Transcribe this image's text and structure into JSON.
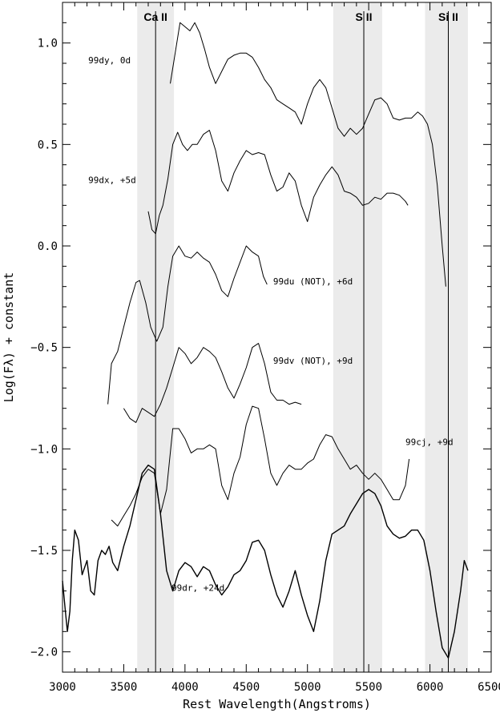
{
  "chart_data": {
    "type": "line",
    "title": "",
    "xlabel": "Rest Wavelength(Angstroms)",
    "ylabel": "Log(Fλ) + constant",
    "xlim": [
      3000,
      6500
    ],
    "ylim": [
      -2.1,
      1.2
    ],
    "x_ticks": [
      3000,
      3500,
      4000,
      4500,
      5000,
      5500,
      6000,
      6500
    ],
    "x_tick_labels": [
      "3000",
      "3500",
      "4000",
      "4500",
      "5000",
      "5500",
      "6000",
      "6500"
    ],
    "y_ticks": [
      1.0,
      0.5,
      0.0,
      -0.5,
      -1.0,
      -1.5,
      -2.0
    ],
    "y_tick_labels": [
      "1.0",
      "0.5",
      "0.0",
      "−0.5",
      "−1.0",
      "−1.5",
      "−2.0"
    ],
    "grid": false,
    "shaded_bands": [
      {
        "x_range": [
          3610,
          3910
        ],
        "color": "#ebebeb"
      },
      {
        "x_range": [
          5210,
          5610
        ],
        "color": "#ebebeb"
      },
      {
        "x_range": [
          5960,
          6310
        ],
        "color": "#ebebeb"
      }
    ],
    "vertical_lines": [
      {
        "x": 3760,
        "label": "Ca II"
      },
      {
        "x": 5460,
        "label": "S II"
      },
      {
        "x": 6150,
        "label": "Si II"
      }
    ],
    "annotations": [
      {
        "text": "99dy, 0d",
        "x": 3210,
        "y": 0.9
      },
      {
        "text": "99dx, +5d",
        "x": 3210,
        "y": 0.31
      },
      {
        "text": "99du (NOT), +6d",
        "x": 4720,
        "y": -0.19
      },
      {
        "text": "99dv (NOT), +9d",
        "x": 4720,
        "y": -0.58
      },
      {
        "text": "99cj, +9d",
        "x": 5800,
        "y": -0.98
      },
      {
        "text": "99dr, +24d",
        "x": 3890,
        "y": -1.7
      }
    ],
    "series": [
      {
        "label_ref": "99dy, 0d",
        "color": "#000000",
        "x": [
          3880,
          3920,
          3960,
          4000,
          4040,
          4080,
          4120,
          4160,
          4200,
          4250,
          4300,
          4350,
          4400,
          4450,
          4500,
          4550,
          4600,
          4650,
          4700,
          4750,
          4800,
          4850,
          4900,
          4950,
          5000,
          5050,
          5100,
          5150,
          5200,
          5250,
          5300,
          5350,
          5400,
          5450,
          5500,
          5550,
          5600,
          5650,
          5700,
          5750,
          5800,
          5850,
          5900,
          5940,
          5980,
          6020,
          6060,
          6100,
          6130
        ],
        "y": [
          0.8,
          0.95,
          1.1,
          1.08,
          1.06,
          1.1,
          1.05,
          0.97,
          0.88,
          0.8,
          0.86,
          0.92,
          0.94,
          0.95,
          0.95,
          0.93,
          0.88,
          0.82,
          0.78,
          0.72,
          0.7,
          0.68,
          0.66,
          0.6,
          0.7,
          0.78,
          0.82,
          0.78,
          0.68,
          0.58,
          0.54,
          0.58,
          0.55,
          0.58,
          0.65,
          0.72,
          0.73,
          0.7,
          0.63,
          0.62,
          0.63,
          0.63,
          0.66,
          0.64,
          0.6,
          0.5,
          0.3,
          0.0,
          -0.2
        ]
      },
      {
        "label_ref": "99dx, +5d",
        "color": "#000000",
        "x": [
          3700,
          3730,
          3760,
          3790,
          3820,
          3860,
          3900,
          3940,
          3980,
          4020,
          4060,
          4100,
          4150,
          4200,
          4250,
          4300,
          4350,
          4400,
          4450,
          4500,
          4550,
          4600,
          4650,
          4700,
          4750,
          4800,
          4850,
          4900,
          4950,
          5000,
          5050,
          5100,
          5150,
          5200,
          5250,
          5300,
          5350,
          5400,
          5450,
          5500,
          5550,
          5600,
          5650,
          5700,
          5750,
          5800,
          5820
        ],
        "y": [
          0.17,
          0.08,
          0.06,
          0.15,
          0.2,
          0.33,
          0.5,
          0.56,
          0.5,
          0.47,
          0.5,
          0.5,
          0.55,
          0.57,
          0.47,
          0.32,
          0.27,
          0.36,
          0.42,
          0.47,
          0.45,
          0.46,
          0.45,
          0.35,
          0.27,
          0.29,
          0.36,
          0.32,
          0.2,
          0.12,
          0.24,
          0.3,
          0.35,
          0.39,
          0.35,
          0.27,
          0.26,
          0.24,
          0.2,
          0.21,
          0.24,
          0.23,
          0.26,
          0.26,
          0.25,
          0.22,
          0.2
        ]
      },
      {
        "label_ref": "99du (NOT), +6d",
        "color": "#000000",
        "x": [
          3370,
          3400,
          3450,
          3500,
          3550,
          3600,
          3630,
          3680,
          3720,
          3770,
          3820,
          3860,
          3900,
          3950,
          4000,
          4050,
          4100,
          4150,
          4200,
          4250,
          4300,
          4350,
          4400,
          4450,
          4500,
          4550,
          4600,
          4640,
          4670
        ],
        "y": [
          -0.78,
          -0.58,
          -0.52,
          -0.4,
          -0.28,
          -0.18,
          -0.17,
          -0.28,
          -0.4,
          -0.47,
          -0.4,
          -0.2,
          -0.05,
          0.0,
          -0.05,
          -0.06,
          -0.03,
          -0.06,
          -0.08,
          -0.14,
          -0.22,
          -0.25,
          -0.16,
          -0.08,
          0.0,
          -0.03,
          -0.05,
          -0.15,
          -0.19
        ]
      },
      {
        "label_ref": "99dv (NOT), +9d",
        "color": "#000000",
        "x": [
          3500,
          3550,
          3600,
          3650,
          3700,
          3750,
          3800,
          3850,
          3900,
          3950,
          4000,
          4050,
          4100,
          4150,
          4200,
          4250,
          4300,
          4350,
          4400,
          4450,
          4500,
          4550,
          4600,
          4650,
          4700,
          4750,
          4800,
          4850,
          4900,
          4950
        ],
        "y": [
          -0.8,
          -0.85,
          -0.87,
          -0.8,
          -0.82,
          -0.84,
          -0.78,
          -0.7,
          -0.6,
          -0.5,
          -0.53,
          -0.58,
          -0.55,
          -0.5,
          -0.52,
          -0.55,
          -0.62,
          -0.7,
          -0.75,
          -0.68,
          -0.6,
          -0.5,
          -0.48,
          -0.58,
          -0.72,
          -0.76,
          -0.76,
          -0.78,
          -0.77,
          -0.78
        ]
      },
      {
        "label_ref": "99cj, +9d",
        "color": "#000000",
        "x": [
          3400,
          3450,
          3500,
          3550,
          3600,
          3650,
          3700,
          3750,
          3800,
          3850,
          3900,
          3950,
          4000,
          4050,
          4100,
          4150,
          4200,
          4250,
          4300,
          4350,
          4400,
          4450,
          4500,
          4550,
          4600,
          4650,
          4700,
          4750,
          4800,
          4850,
          4900,
          4950,
          5000,
          5050,
          5100,
          5150,
          5200,
          5250,
          5300,
          5350,
          5400,
          5450,
          5500,
          5550,
          5600,
          5650,
          5700,
          5750,
          5800,
          5830
        ],
        "y": [
          -1.35,
          -1.38,
          -1.33,
          -1.28,
          -1.22,
          -1.14,
          -1.1,
          -1.12,
          -1.32,
          -1.2,
          -0.9,
          -0.9,
          -0.95,
          -1.02,
          -1.0,
          -1.0,
          -0.98,
          -1.0,
          -1.18,
          -1.25,
          -1.12,
          -1.04,
          -0.88,
          -0.79,
          -0.8,
          -0.95,
          -1.12,
          -1.18,
          -1.12,
          -1.08,
          -1.1,
          -1.1,
          -1.07,
          -1.05,
          -0.98,
          -0.93,
          -0.94,
          -1.0,
          -1.05,
          -1.1,
          -1.08,
          -1.12,
          -1.15,
          -1.12,
          -1.15,
          -1.2,
          -1.25,
          -1.25,
          -1.18,
          -1.05
        ]
      },
      {
        "label_ref": "99dr, +24d",
        "color": "#000000",
        "x": [
          3000,
          3020,
          3040,
          3060,
          3080,
          3100,
          3130,
          3160,
          3200,
          3230,
          3260,
          3290,
          3320,
          3350,
          3380,
          3410,
          3450,
          3500,
          3550,
          3600,
          3650,
          3700,
          3750,
          3800,
          3850,
          3900,
          3950,
          4000,
          4050,
          4100,
          4150,
          4200,
          4250,
          4300,
          4350,
          4400,
          4450,
          4500,
          4550,
          4600,
          4650,
          4700,
          4750,
          4800,
          4850,
          4900,
          4950,
          5000,
          5050,
          5100,
          5150,
          5200,
          5250,
          5300,
          5350,
          5400,
          5450,
          5500,
          5550,
          5600,
          5650,
          5700,
          5750,
          5800,
          5850,
          5900,
          5950,
          6000,
          6050,
          6100,
          6150,
          6200,
          6250,
          6280,
          6310
        ],
        "y": [
          -1.65,
          -1.78,
          -1.9,
          -1.8,
          -1.55,
          -1.4,
          -1.45,
          -1.62,
          -1.55,
          -1.7,
          -1.72,
          -1.55,
          -1.5,
          -1.52,
          -1.48,
          -1.56,
          -1.6,
          -1.48,
          -1.38,
          -1.25,
          -1.12,
          -1.08,
          -1.1,
          -1.32,
          -1.6,
          -1.7,
          -1.6,
          -1.56,
          -1.58,
          -1.63,
          -1.58,
          -1.6,
          -1.67,
          -1.72,
          -1.68,
          -1.62,
          -1.6,
          -1.55,
          -1.46,
          -1.45,
          -1.5,
          -1.62,
          -1.72,
          -1.78,
          -1.7,
          -1.6,
          -1.72,
          -1.82,
          -1.9,
          -1.75,
          -1.55,
          -1.42,
          -1.4,
          -1.38,
          -1.32,
          -1.27,
          -1.22,
          -1.2,
          -1.22,
          -1.28,
          -1.38,
          -1.42,
          -1.44,
          -1.43,
          -1.4,
          -1.4,
          -1.45,
          -1.6,
          -1.8,
          -1.98,
          -2.03,
          -1.9,
          -1.7,
          -1.55,
          -1.6
        ]
      }
    ]
  }
}
